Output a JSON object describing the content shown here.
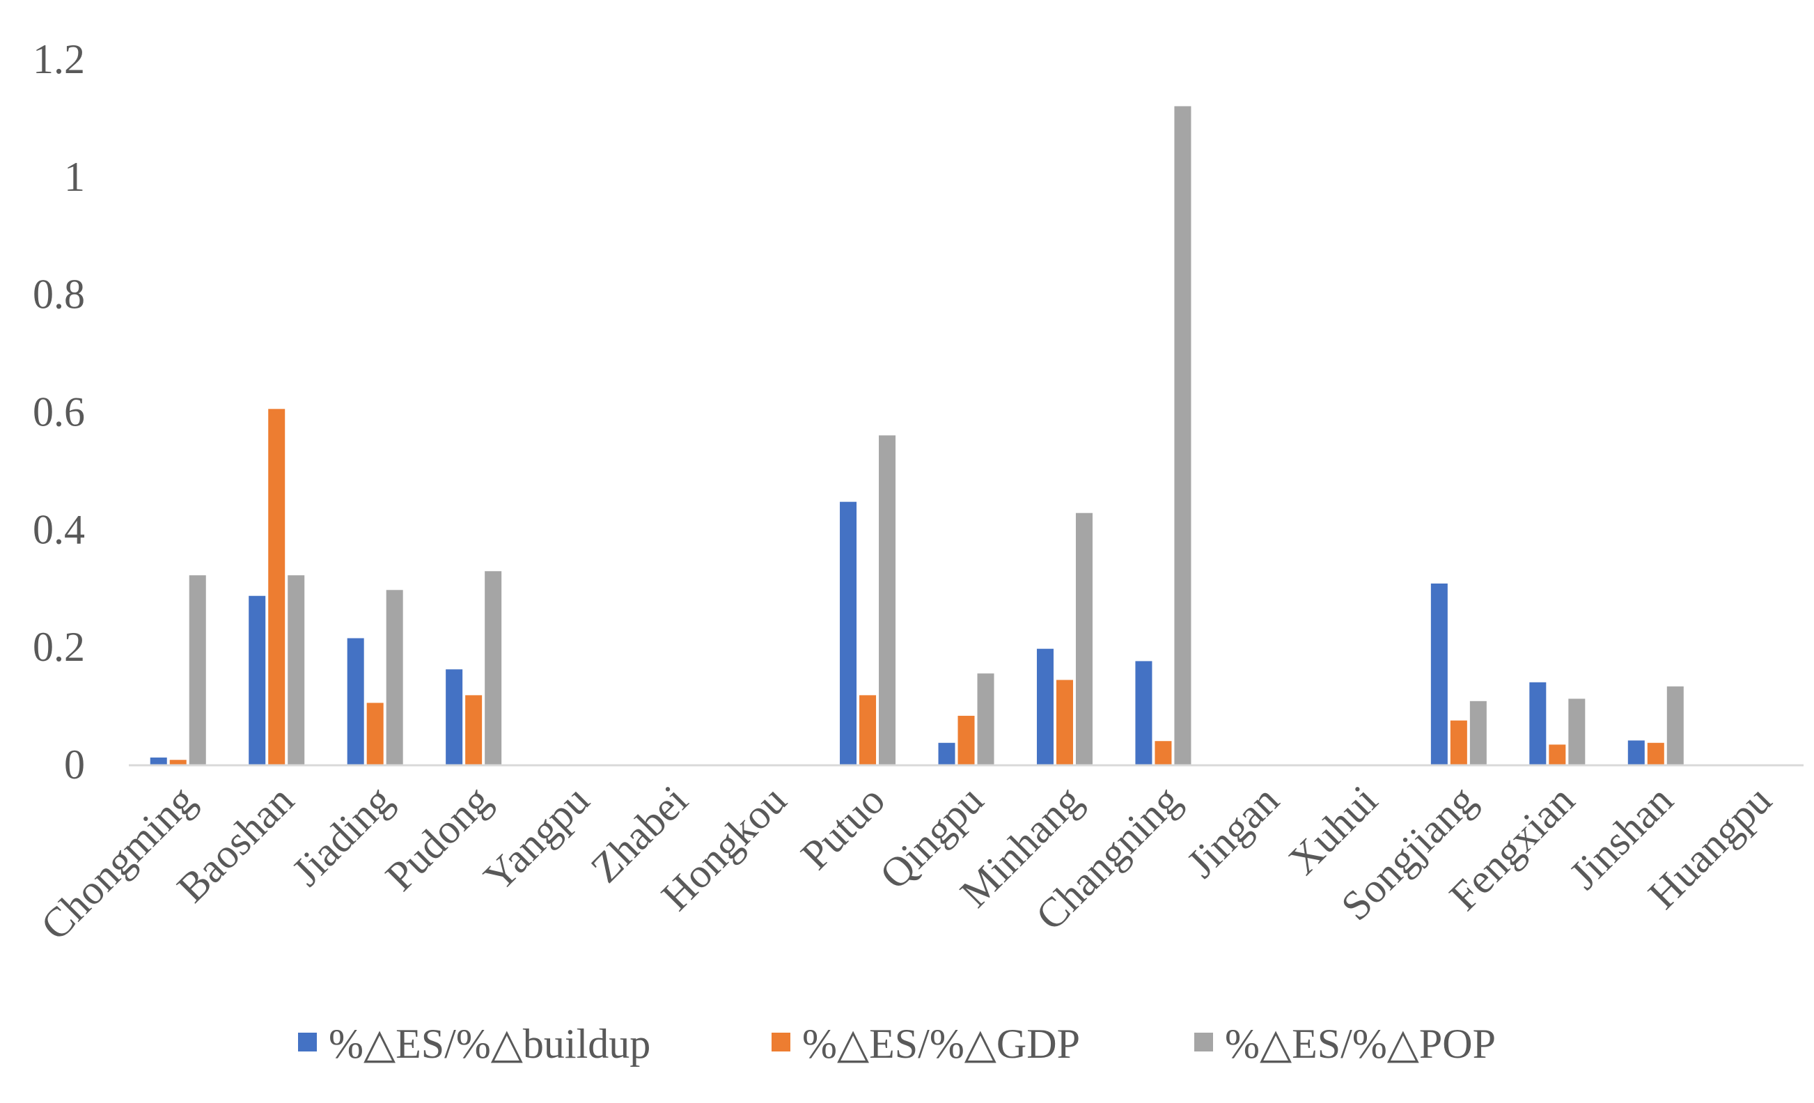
{
  "chart_data": {
    "type": "bar",
    "title": "",
    "xlabel": "",
    "ylabel": "",
    "ylim": [
      0,
      1.2
    ],
    "yticks": [
      0,
      0.2,
      0.4,
      0.6,
      0.8,
      1,
      1.2
    ],
    "ytick_labels": [
      "0",
      "0.2",
      "0.4",
      "0.6",
      "0.8",
      "1",
      "1.2"
    ],
    "grid": false,
    "legend_position": "bottom",
    "categories": [
      "Chongming",
      "Baoshan",
      "Jiading",
      "Pudong",
      "Yangpu",
      "Zhabei",
      "Hongkou",
      "Putuo",
      "Qingpu",
      "Minhang",
      "Changning",
      "Jingan",
      "Xuhui",
      "Songjiang",
      "Fengxian",
      "Jinshan",
      "Huangpu"
    ],
    "series": [
      {
        "name": "%△ES/%△buildup",
        "color": "#4472C4",
        "values": [
          0.012,
          0.287,
          0.215,
          0.162,
          0,
          0,
          0,
          0.447,
          0.037,
          0.197,
          0.176,
          0,
          0,
          0.308,
          0.14,
          0.041,
          0
        ]
      },
      {
        "name": "%△ES/%△GDP",
        "color": "#ED7D31",
        "values": [
          0.008,
          0.605,
          0.105,
          0.118,
          0,
          0,
          0,
          0.118,
          0.083,
          0.144,
          0.04,
          0,
          0,
          0.075,
          0.034,
          0.037,
          0
        ]
      },
      {
        "name": "%△ES/%△POP",
        "color": "#A5A5A5",
        "values": [
          0.322,
          0.322,
          0.297,
          0.329,
          0,
          0,
          0,
          0.56,
          0.155,
          0.428,
          1.12,
          0,
          0,
          0.108,
          0.112,
          0.133,
          0
        ]
      }
    ],
    "axis_color": "#D9D9D9",
    "text_color": "#595959"
  }
}
